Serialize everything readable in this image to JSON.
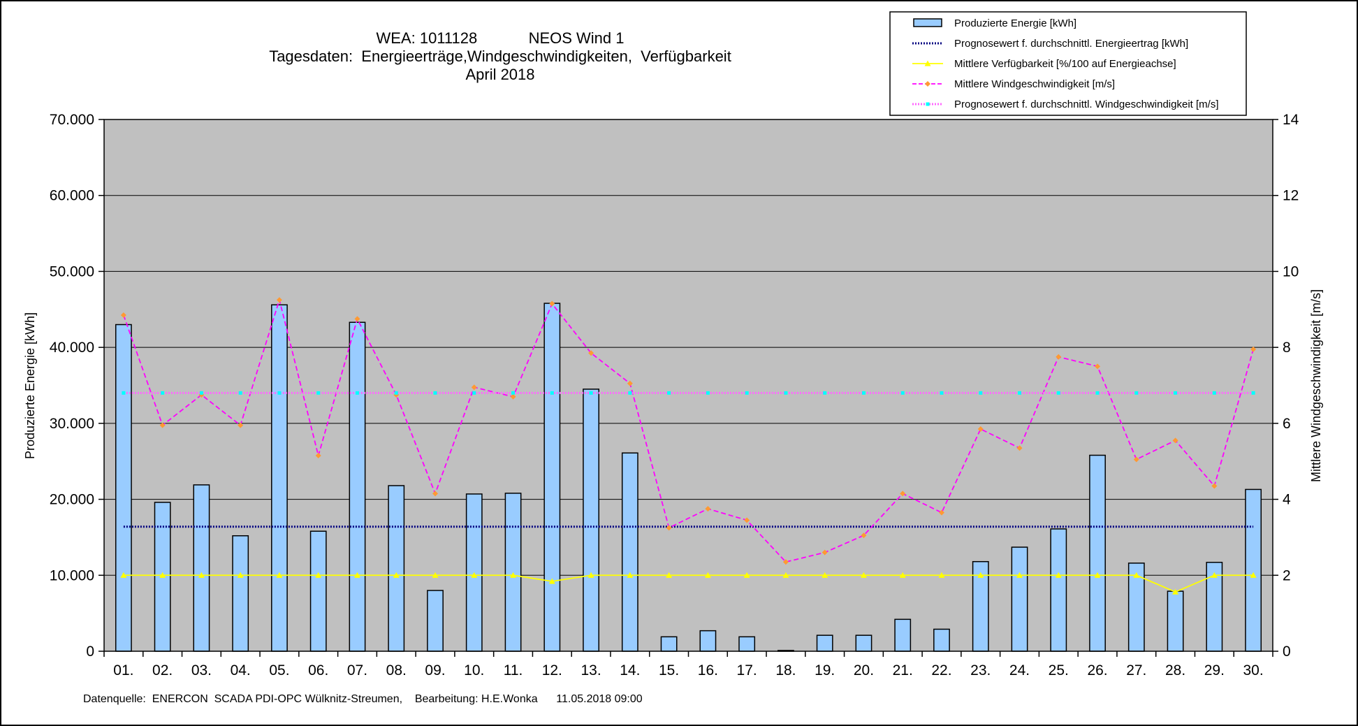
{
  "chart_data": {
    "type": "bar",
    "title_lines": [
      "WEA: 1011128            NEOS Wind 1",
      "Tagesdaten:  Energieerträge,Windgeschwindigkeiten,  Verfügbarkeit",
      "April 2018"
    ],
    "ylabel": "Produzierte Energie [kWh]",
    "y2label": "Mittlere Windgeschwindigkeit [m/s]",
    "xlabel": "",
    "ylim": [
      0,
      70000
    ],
    "y2lim": [
      0,
      14
    ],
    "y_ticks": [
      0,
      10000,
      20000,
      30000,
      40000,
      50000,
      60000,
      70000
    ],
    "y_tick_labels": [
      "0",
      "10.000",
      "20.000",
      "30.000",
      "40.000",
      "50.000",
      "60.000",
      "70.000"
    ],
    "y2_ticks": [
      0,
      2,
      4,
      6,
      8,
      10,
      12,
      14
    ],
    "y2_tick_labels": [
      "0",
      "2",
      "4",
      "6",
      "8",
      "10",
      "12",
      "14"
    ],
    "grid": true,
    "legend_position": "top-right",
    "plot_background": "#c0c0c0",
    "categories": [
      "01.",
      "02.",
      "03.",
      "04.",
      "05.",
      "06.",
      "07.",
      "08.",
      "09.",
      "10.",
      "11.",
      "12.",
      "13.",
      "14.",
      "15.",
      "16.",
      "17.",
      "18.",
      "19.",
      "20.",
      "21.",
      "22.",
      "23.",
      "24.",
      "25.",
      "26.",
      "27.",
      "28.",
      "29.",
      "30."
    ],
    "series": [
      {
        "name": "Produzierte Energie [kWh]",
        "kind": "bar",
        "axis": "left",
        "color": "#99ccff",
        "values": [
          43000,
          19600,
          21900,
          15200,
          45600,
          15800,
          43300,
          21800,
          8000,
          20700,
          20800,
          45800,
          34500,
          26100,
          1900,
          2700,
          1900,
          100,
          2100,
          2100,
          4200,
          2900,
          11800,
          13700,
          16100,
          25800,
          11600,
          7900,
          11700,
          21300
        ]
      },
      {
        "name": "Prognosewert f. durchschnittl. Energieertrag  [kWh]",
        "kind": "line",
        "axis": "left",
        "color": "#000080",
        "dash": "dotted",
        "values": [
          16400,
          16400,
          16400,
          16400,
          16400,
          16400,
          16400,
          16400,
          16400,
          16400,
          16400,
          16400,
          16400,
          16400,
          16400,
          16400,
          16400,
          16400,
          16400,
          16400,
          16400,
          16400,
          16400,
          16400,
          16400,
          16400,
          16400,
          16400,
          16400,
          16400
        ]
      },
      {
        "name": "Mittlere Verfügbarkeit [%/100 auf Energieachse]",
        "kind": "line",
        "axis": "left",
        "color": "#ffff00",
        "marker": "triangle",
        "values": [
          10000,
          10000,
          10000,
          10000,
          10000,
          10000,
          10000,
          10000,
          10000,
          10000,
          10000,
          9200,
          10000,
          10000,
          10000,
          10000,
          10000,
          10000,
          10000,
          10000,
          10000,
          10000,
          10000,
          10000,
          10000,
          10000,
          10000,
          7800,
          10000,
          10000
        ]
      },
      {
        "name": "Mittlere Windgeschwindigkeit [m/s]",
        "kind": "line",
        "axis": "right",
        "color": "#ff00ff",
        "marker": "diamond",
        "marker_color": "#ff9933",
        "dash": "dashed",
        "values": [
          8.85,
          5.95,
          6.75,
          5.95,
          9.25,
          5.15,
          8.75,
          6.75,
          4.15,
          6.95,
          6.7,
          9.15,
          7.85,
          7.05,
          3.25,
          3.75,
          3.45,
          2.35,
          2.6,
          3.05,
          4.15,
          3.65,
          5.85,
          5.35,
          7.75,
          7.5,
          5.05,
          5.55,
          4.35,
          7.95
        ]
      },
      {
        "name": "Prognosewert f. durchschnittl. Windgeschwindigkeit [m/s]",
        "kind": "line",
        "axis": "right",
        "color": "#ff66ff",
        "marker": "square",
        "marker_color": "#00ffff",
        "dash": "dotted",
        "values": [
          6.8,
          6.8,
          6.8,
          6.8,
          6.8,
          6.8,
          6.8,
          6.8,
          6.8,
          6.8,
          6.8,
          6.8,
          6.8,
          6.8,
          6.8,
          6.8,
          6.8,
          6.8,
          6.8,
          6.8,
          6.8,
          6.8,
          6.8,
          6.8,
          6.8,
          6.8,
          6.8,
          6.8,
          6.8,
          6.8
        ]
      }
    ],
    "footer": "Datenquelle:  ENERCON  SCADA PDI-OPC Wülknitz-Streumen,    Bearbeitung: H.E.Wonka      11.05.2018 09:00"
  }
}
